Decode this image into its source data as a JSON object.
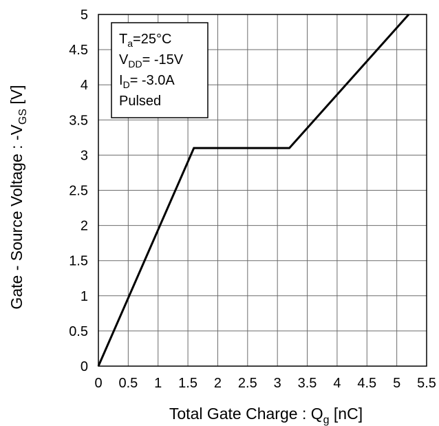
{
  "chart_data": {
    "type": "line",
    "title": "",
    "xlabel": "Total Gate Charge : Q",
    "xlabel_sub": "g",
    "xlabel_unit": " [nC]",
    "ylabel": "Gate - Source Voltage : -V",
    "ylabel_sub": "GS",
    "ylabel_unit": " [V]",
    "xlim": [
      0,
      5.5
    ],
    "ylim": [
      0,
      5
    ],
    "x_ticks": [
      "0",
      "0.5",
      "1",
      "1.5",
      "2",
      "2.5",
      "3",
      "3.5",
      "4",
      "4.5",
      "5",
      "5.5"
    ],
    "y_ticks": [
      "0",
      "0.5",
      "1",
      "1.5",
      "2",
      "2.5",
      "3",
      "3.5",
      "4",
      "4.5",
      "5"
    ],
    "grid": true,
    "series": [
      {
        "color": "#000000",
        "x": [
          0,
          1.6,
          3.2,
          5.2
        ],
        "y": [
          0,
          3.1,
          3.1,
          5.0
        ]
      }
    ],
    "annotation_box": {
      "lines": [
        {
          "main": "T",
          "sub": "a",
          "rest": "=25°C"
        },
        {
          "main": "V",
          "sub": "DD",
          "rest": "= -15V"
        },
        {
          "main": "I",
          "sub": "D",
          "rest": "= -3.0A"
        },
        {
          "main": "Pulsed",
          "sub": "",
          "rest": ""
        }
      ]
    }
  }
}
